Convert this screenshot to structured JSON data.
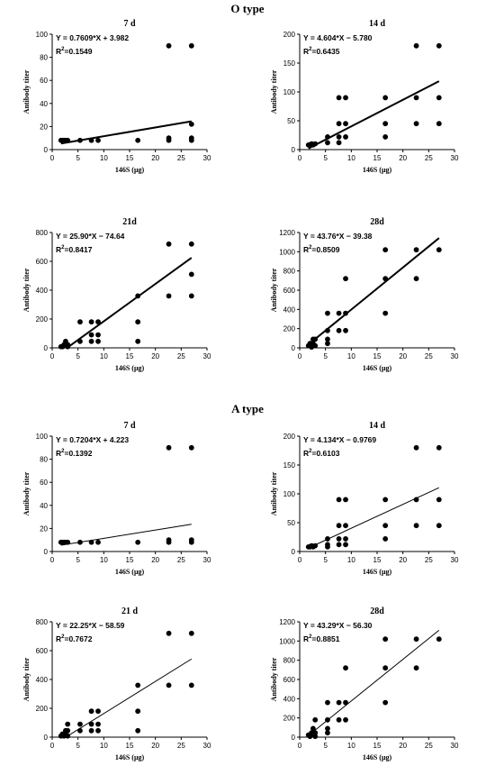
{
  "sections": [
    {
      "title": "O type"
    },
    {
      "title": "A type"
    }
  ],
  "chart_data": [
    {
      "type": "scatter",
      "section": "O type",
      "title": "7 d",
      "equation": "Y = 0.7609*X + 3.982",
      "r2_prefix": "R",
      "r2_sup": "2",
      "r2_suffix": "=0.1549",
      "xlabel": "146S (μg)",
      "ylabel": "Antibody titer",
      "xlim": [
        0,
        30
      ],
      "ylim": [
        0,
        100
      ],
      "xticks": [
        0,
        5,
        10,
        15,
        20,
        25,
        30
      ],
      "yticks": [
        0,
        20,
        40,
        60,
        80,
        100
      ],
      "fit": {
        "slope": 0.7609,
        "intercept": 3.982,
        "x_range": [
          1.7,
          27
        ]
      },
      "points": [
        [
          1.7,
          8
        ],
        [
          2,
          8
        ],
        [
          2.3,
          8
        ],
        [
          2.6,
          8
        ],
        [
          3,
          8
        ],
        [
          5.4,
          8
        ],
        [
          7.6,
          8
        ],
        [
          8.9,
          8
        ],
        [
          16.6,
          8
        ],
        [
          22.6,
          90
        ],
        [
          22.6,
          10
        ],
        [
          22.6,
          8
        ],
        [
          27,
          90
        ],
        [
          27,
          22
        ],
        [
          27,
          10
        ],
        [
          27,
          8
        ]
      ]
    },
    {
      "type": "scatter",
      "section": "O type",
      "title": "14 d",
      "equation": "Y = 4.604*X − 5.780",
      "r2_prefix": "R",
      "r2_sup": "2",
      "r2_suffix": "=0.6435",
      "xlabel": "146S (μg)",
      "ylabel": "Antibody titer",
      "xlim": [
        0,
        30
      ],
      "ylim": [
        0,
        200
      ],
      "xticks": [
        0,
        5,
        10,
        15,
        20,
        25,
        30
      ],
      "yticks": [
        0,
        50,
        100,
        150,
        200
      ],
      "fit": {
        "slope": 4.604,
        "intercept": -5.78,
        "x_range": [
          1.7,
          27
        ]
      },
      "points": [
        [
          1.7,
          8
        ],
        [
          2,
          8
        ],
        [
          2.3,
          10
        ],
        [
          2.6,
          8
        ],
        [
          3,
          10
        ],
        [
          5.4,
          22
        ],
        [
          5.4,
          12
        ],
        [
          7.6,
          90
        ],
        [
          7.6,
          45
        ],
        [
          7.6,
          22
        ],
        [
          7.6,
          12
        ],
        [
          8.9,
          90
        ],
        [
          8.9,
          45
        ],
        [
          8.9,
          22
        ],
        [
          16.6,
          90
        ],
        [
          16.6,
          45
        ],
        [
          16.6,
          22
        ],
        [
          22.6,
          180
        ],
        [
          22.6,
          90
        ],
        [
          22.6,
          45
        ],
        [
          27,
          180
        ],
        [
          27,
          90
        ],
        [
          27,
          45
        ]
      ]
    },
    {
      "type": "scatter",
      "section": "O type",
      "title": "21d",
      "equation": "Y = 25.90*X − 74.64",
      "r2_prefix": "R",
      "r2_sup": "2",
      "r2_suffix": "=0.8417",
      "xlabel": "146S (μg)",
      "ylabel": "Antibody titer",
      "xlim": [
        0,
        30
      ],
      "ylim": [
        0,
        800
      ],
      "xticks": [
        0,
        5,
        10,
        15,
        20,
        25,
        30
      ],
      "yticks": [
        0,
        200,
        400,
        600,
        800
      ],
      "fit": {
        "slope": 25.9,
        "intercept": -74.64,
        "x_range": [
          2.9,
          27
        ]
      },
      "points": [
        [
          1.7,
          8
        ],
        [
          2,
          8
        ],
        [
          2.3,
          22
        ],
        [
          2.6,
          45
        ],
        [
          3,
          22
        ],
        [
          3,
          8
        ],
        [
          5.4,
          180
        ],
        [
          5.4,
          45
        ],
        [
          7.6,
          180
        ],
        [
          7.6,
          90
        ],
        [
          7.6,
          45
        ],
        [
          8.9,
          180
        ],
        [
          8.9,
          90
        ],
        [
          8.9,
          45
        ],
        [
          16.6,
          360
        ],
        [
          16.6,
          180
        ],
        [
          16.6,
          45
        ],
        [
          22.6,
          720
        ],
        [
          22.6,
          360
        ],
        [
          27,
          720
        ],
        [
          27,
          510
        ],
        [
          27,
          360
        ]
      ]
    },
    {
      "type": "scatter",
      "section": "O type",
      "title": "28d",
      "equation": "Y = 43.76*X − 39.38",
      "r2_prefix": "R",
      "r2_sup": "2",
      "r2_suffix": "=0.8509",
      "xlabel": "146S (μg)",
      "ylabel": "Antibody titer",
      "xlim": [
        0,
        30
      ],
      "ylim": [
        0,
        1200
      ],
      "xticks": [
        0,
        5,
        10,
        15,
        20,
        25,
        30
      ],
      "yticks": [
        0,
        200,
        400,
        600,
        800,
        1000,
        1200
      ],
      "fit": {
        "slope": 43.76,
        "intercept": -39.38,
        "x_range": [
          1.9,
          27
        ]
      },
      "points": [
        [
          1.7,
          22
        ],
        [
          2,
          45
        ],
        [
          2.3,
          8
        ],
        [
          2.6,
          90
        ],
        [
          2.6,
          45
        ],
        [
          3,
          90
        ],
        [
          3,
          22
        ],
        [
          5.4,
          360
        ],
        [
          5.4,
          180
        ],
        [
          5.4,
          90
        ],
        [
          5.4,
          45
        ],
        [
          7.6,
          360
        ],
        [
          7.6,
          180
        ],
        [
          8.9,
          720
        ],
        [
          8.9,
          360
        ],
        [
          8.9,
          180
        ],
        [
          16.6,
          1020
        ],
        [
          16.6,
          720
        ],
        [
          16.6,
          360
        ],
        [
          22.6,
          1020
        ],
        [
          22.6,
          720
        ],
        [
          27,
          1020
        ]
      ]
    },
    {
      "type": "scatter",
      "section": "A type",
      "title": "7 d",
      "equation": "Y = 0.7204*X + 4.223",
      "r2_prefix": "R",
      "r2_sup": "2",
      "r2_suffix": "=0.1392",
      "xlabel": "146S (μg)",
      "ylabel": "Antibody titer",
      "xlim": [
        0,
        30
      ],
      "ylim": [
        0,
        100
      ],
      "xticks": [
        0,
        5,
        10,
        15,
        20,
        25,
        30
      ],
      "yticks": [
        0,
        20,
        40,
        60,
        80,
        100
      ],
      "fit": {
        "slope": 0.7204,
        "intercept": 4.223,
        "x_range": [
          1.7,
          27
        ]
      },
      "points": [
        [
          1.7,
          8
        ],
        [
          2,
          8
        ],
        [
          2.3,
          8
        ],
        [
          2.6,
          8
        ],
        [
          3,
          8
        ],
        [
          5.4,
          8
        ],
        [
          7.6,
          8
        ],
        [
          8.9,
          8
        ],
        [
          16.6,
          8
        ],
        [
          22.6,
          90
        ],
        [
          22.6,
          10
        ],
        [
          22.6,
          8
        ],
        [
          27,
          90
        ],
        [
          27,
          10
        ],
        [
          27,
          8
        ]
      ]
    },
    {
      "type": "scatter",
      "section": "A type",
      "title": "14 d",
      "equation": "Y = 4.134*X − 0.9769",
      "r2_prefix": "R",
      "r2_sup": "2",
      "r2_suffix": "=0.6103",
      "xlabel": "146S (μg)",
      "ylabel": "Antibody titer",
      "xlim": [
        0,
        30
      ],
      "ylim": [
        0,
        200
      ],
      "xticks": [
        0,
        5,
        10,
        15,
        20,
        25,
        30
      ],
      "yticks": [
        0,
        50,
        100,
        150,
        200
      ],
      "fit": {
        "slope": 4.134,
        "intercept": -0.9769,
        "x_range": [
          1.7,
          27
        ]
      },
      "points": [
        [
          1.7,
          8
        ],
        [
          2,
          8
        ],
        [
          2.3,
          10
        ],
        [
          2.6,
          8
        ],
        [
          3,
          10
        ],
        [
          5.4,
          22
        ],
        [
          5.4,
          12
        ],
        [
          5.4,
          8
        ],
        [
          7.6,
          90
        ],
        [
          7.6,
          45
        ],
        [
          7.6,
          22
        ],
        [
          7.6,
          12
        ],
        [
          8.9,
          90
        ],
        [
          8.9,
          45
        ],
        [
          8.9,
          22
        ],
        [
          8.9,
          12
        ],
        [
          16.6,
          90
        ],
        [
          16.6,
          45
        ],
        [
          16.6,
          22
        ],
        [
          22.6,
          180
        ],
        [
          22.6,
          90
        ],
        [
          22.6,
          45
        ],
        [
          27,
          180
        ],
        [
          27,
          90
        ],
        [
          27,
          45
        ]
      ]
    },
    {
      "type": "scatter",
      "section": "A type",
      "title": "21 d",
      "equation": "Y = 22.25*X − 58.59",
      "r2_prefix": "R",
      "r2_sup": "2",
      "r2_suffix": "=0.7672",
      "xlabel": "146S (μg)",
      "ylabel": "Antibody titer",
      "xlim": [
        0,
        30
      ],
      "ylim": [
        0,
        800
      ],
      "xticks": [
        0,
        5,
        10,
        15,
        20,
        25,
        30
      ],
      "yticks": [
        0,
        200,
        400,
        600,
        800
      ],
      "fit": {
        "slope": 22.25,
        "intercept": -58.59,
        "x_range": [
          2.65,
          27
        ]
      },
      "points": [
        [
          1.7,
          8
        ],
        [
          2,
          22
        ],
        [
          2.3,
          8
        ],
        [
          2.6,
          45
        ],
        [
          2.6,
          22
        ],
        [
          3,
          90
        ],
        [
          3,
          45
        ],
        [
          3,
          8
        ],
        [
          5.4,
          90
        ],
        [
          5.4,
          45
        ],
        [
          7.6,
          180
        ],
        [
          7.6,
          90
        ],
        [
          7.6,
          45
        ],
        [
          8.9,
          180
        ],
        [
          8.9,
          90
        ],
        [
          8.9,
          45
        ],
        [
          16.6,
          360
        ],
        [
          16.6,
          180
        ],
        [
          16.6,
          45
        ],
        [
          22.6,
          720
        ],
        [
          22.6,
          360
        ],
        [
          27,
          720
        ],
        [
          27,
          360
        ]
      ]
    },
    {
      "type": "scatter",
      "section": "A type",
      "title": "28d",
      "equation": "Y = 43.29*X − 56.30",
      "r2_prefix": "R",
      "r2_sup": "2",
      "r2_suffix": "=0.8851",
      "xlabel": "146S (μg)",
      "ylabel": "Antibody titer",
      "xlim": [
        0,
        30
      ],
      "ylim": [
        0,
        1200
      ],
      "xticks": [
        0,
        5,
        10,
        15,
        20,
        25,
        30
      ],
      "yticks": [
        0,
        200,
        400,
        600,
        800,
        1000,
        1200
      ],
      "fit": {
        "slope": 43.29,
        "intercept": -56.3,
        "x_range": [
          1.5,
          27
        ]
      },
      "points": [
        [
          1.7,
          22
        ],
        [
          2,
          8
        ],
        [
          2.3,
          45
        ],
        [
          2.6,
          90
        ],
        [
          2.6,
          22
        ],
        [
          3,
          45
        ],
        [
          3,
          180
        ],
        [
          3,
          8
        ],
        [
          5.4,
          360
        ],
        [
          5.4,
          180
        ],
        [
          5.4,
          90
        ],
        [
          5.4,
          45
        ],
        [
          7.6,
          360
        ],
        [
          7.6,
          180
        ],
        [
          8.9,
          720
        ],
        [
          8.9,
          360
        ],
        [
          8.9,
          180
        ],
        [
          16.6,
          1020
        ],
        [
          16.6,
          720
        ],
        [
          16.6,
          360
        ],
        [
          22.6,
          1020
        ],
        [
          22.6,
          720
        ],
        [
          27,
          1020
        ]
      ]
    }
  ]
}
